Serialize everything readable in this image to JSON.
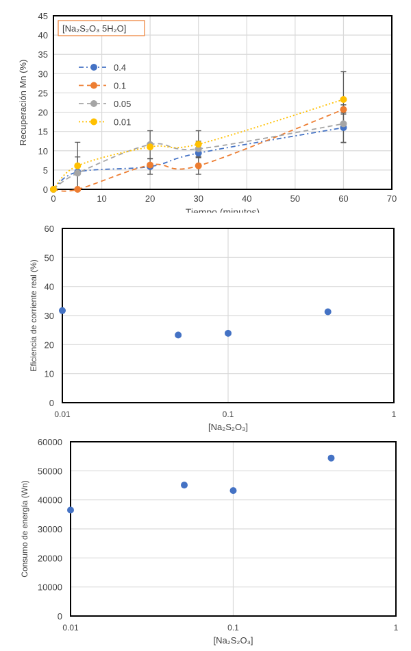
{
  "chart_data": [
    {
      "type": "line",
      "xlabel": "Tiempo (minutos)",
      "ylabel": "Recuperación Mn (%)",
      "xlim": [
        0,
        70
      ],
      "ylim": [
        0,
        45
      ],
      "xticks": [
        0,
        10,
        20,
        30,
        40,
        50,
        60,
        70
      ],
      "yticks": [
        0,
        5,
        10,
        15,
        20,
        25,
        30,
        35,
        40,
        45
      ],
      "grid": true,
      "legend_title": "[Na₂S₂O₃ 5H₂O]",
      "legend_position": "top-left",
      "smoothed": true,
      "series": [
        {
          "name": "0.4",
          "color": "#4472C4",
          "dash": "dash-dot",
          "x": [
            0,
            5,
            20,
            30,
            60
          ],
          "y": [
            0,
            4.5,
            5.9,
            9.4,
            16.0
          ],
          "error": [
            0,
            0,
            2.0,
            0,
            3.8
          ]
        },
        {
          "name": "0.1",
          "color": "#ED7D31",
          "dash": "dash",
          "x": [
            0,
            5,
            20,
            30,
            60
          ],
          "y": [
            0,
            0,
            6.3,
            6.1,
            20.7
          ],
          "error": [
            0,
            0,
            0,
            2.2,
            1.2
          ]
        },
        {
          "name": "0.05",
          "color": "#A5A5A5",
          "dash": "dash",
          "x": [
            0,
            5,
            20,
            30,
            60
          ],
          "y": [
            0,
            4.2,
            11.6,
            10.5,
            17.0
          ],
          "error": [
            0,
            4.2,
            3.6,
            2.0,
            4.9
          ]
        },
        {
          "name": "0.01",
          "color": "#FFC000",
          "dash": "dot",
          "x": [
            0,
            5,
            20,
            30,
            60
          ],
          "y": [
            0,
            6.1,
            11.0,
            11.7,
            23.3
          ],
          "error": [
            0,
            6.1,
            0,
            3.5,
            7.2
          ]
        }
      ]
    },
    {
      "type": "scatter",
      "xlabel": "[Na₂S₂O₃]",
      "ylabel": "Eficiencia de corriente real (%)",
      "xscale": "log",
      "xlim": [
        0.01,
        1
      ],
      "ylim": [
        0,
        60
      ],
      "xticks": [
        "0.01",
        "0.1",
        "1"
      ],
      "yticks": [
        0,
        10,
        20,
        30,
        40,
        50,
        60
      ],
      "grid": true,
      "color": "#4472C4",
      "x": [
        0.01,
        0.05,
        0.1,
        0.4
      ],
      "y": [
        31.7,
        23.3,
        23.9,
        31.3
      ]
    },
    {
      "type": "scatter",
      "xlabel": "[Na₂S₂O₃]",
      "ylabel": "Consumo de energía (Wn)",
      "xscale": "log",
      "xlim": [
        0.01,
        1
      ],
      "ylim": [
        0,
        60000
      ],
      "xticks": [
        "0.01",
        "0.1",
        "1"
      ],
      "yticks": [
        0,
        10000,
        20000,
        30000,
        40000,
        50000,
        60000
      ],
      "grid": true,
      "color": "#4472C4",
      "x": [
        0.01,
        0.05,
        0.1,
        0.4
      ],
      "y": [
        36500,
        45100,
        43200,
        54400
      ]
    }
  ]
}
